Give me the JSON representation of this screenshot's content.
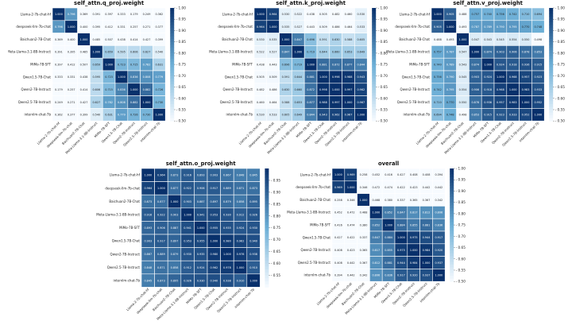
{
  "labels": [
    "Llama-2-7b-chat-hf",
    "deepseek-llm-7b-chat",
    "Baichuan2-7B-Chat",
    "Meta-Llama-3.1-8B-Instruct",
    "MiMo-7B-SFT",
    "Qwen1.5-7B-Chat",
    "Qwen2-7B-Instruct",
    "Qwen2.5-7B-Instruct",
    "internlm-chat-7b"
  ],
  "colormap": {
    "low": "#f7fbff",
    "mid": "#6baed6",
    "high": "#08306b"
  },
  "chart_data": [
    {
      "type": "heatmap",
      "title": "self_attn.q_proj.weight",
      "vmin": 0.5,
      "vmax": 1.0,
      "colorbar_ticks": [
        1.0,
        0.95,
        0.9,
        0.85,
        0.8,
        0.75,
        0.7,
        0.65,
        0.6,
        0.55,
        0.5
      ],
      "values": [
        [
          1.0,
          0.796,
          0.369,
          0.391,
          0.397,
          0.333,
          0.179,
          0.249,
          0.362
        ],
        [
          0.796,
          1.0,
          0.4,
          0.395,
          0.412,
          0.331,
          0.257,
          0.271,
          0.377
        ],
        [
          0.369,
          0.4,
          1.0,
          0.485,
          0.507,
          0.438,
          0.414,
          0.427,
          0.399
        ],
        [
          0.391,
          0.395,
          0.485,
          1.0,
          0.659,
          0.595,
          0.606,
          0.627,
          0.54
        ],
        [
          0.397,
          0.412,
          0.507,
          0.659,
          1.0,
          0.723,
          0.715,
          0.782,
          0.631
        ],
        [
          0.333,
          0.331,
          0.438,
          0.595,
          0.723,
          1.0,
          0.836,
          0.808,
          0.779
        ],
        [
          0.179,
          0.257,
          0.414,
          0.606,
          0.715,
          0.836,
          1.0,
          0.882,
          0.726
        ],
        [
          0.249,
          0.271,
          0.427,
          0.627,
          0.782,
          0.808,
          0.882,
          1.0,
          0.73
        ],
        [
          0.362,
          0.377,
          0.399,
          0.54,
          0.631,
          0.779,
          0.726,
          0.73,
          1.0
        ]
      ]
    },
    {
      "type": "heatmap",
      "title": "self_attn.k_proj.weight",
      "vmin": 0.5,
      "vmax": 1.0,
      "colorbar_ticks": [
        1.0,
        0.95,
        0.9,
        0.85,
        0.8,
        0.75,
        0.7,
        0.65,
        0.6,
        0.55,
        0.5
      ],
      "values": [
        [
          1.0,
          0.964,
          0.53,
          0.522,
          0.438,
          0.505,
          0.482,
          0.46,
          0.53
        ],
        [
          0.964,
          1.0,
          0.535,
          0.527,
          0.443,
          0.509,
          0.486,
          0.464,
          0.533
        ],
        [
          0.53,
          0.535,
          1.0,
          0.847,
          0.696,
          0.591,
          0.63,
          0.588,
          0.605
        ],
        [
          0.522,
          0.527,
          0.847,
          1.0,
          0.719,
          0.644,
          0.66,
          0.653,
          0.649
        ],
        [
          0.438,
          0.443,
          0.696,
          0.719,
          1.0,
          0.881,
          0.872,
          0.877,
          0.844
        ],
        [
          0.505,
          0.509,
          0.591,
          0.644,
          0.881,
          1.0,
          0.998,
          0.988,
          0.943
        ],
        [
          0.482,
          0.486,
          0.63,
          0.66,
          0.872,
          0.998,
          1.0,
          0.997,
          0.962
        ],
        [
          0.46,
          0.464,
          0.588,
          0.653,
          0.877,
          0.988,
          0.997,
          1.0,
          0.967
        ],
        [
          0.53,
          0.533,
          0.605,
          0.649,
          0.844,
          0.943,
          0.962,
          0.967,
          1.0
        ]
      ]
    },
    {
      "type": "heatmap",
      "title": "self_attn.v_proj.weight",
      "vmin": 0.5,
      "vmax": 1.0,
      "colorbar_ticks": [
        1.0,
        0.95,
        0.9,
        0.85,
        0.8,
        0.75,
        0.7,
        0.65,
        0.6,
        0.55,
        0.5
      ],
      "values": [
        [
          1.0,
          0.905,
          0.488,
          0.757,
          0.74,
          0.756,
          0.742,
          0.71,
          0.694
        ],
        [
          0.905,
          1.0,
          0.493,
          0.787,
          0.789,
          0.79,
          0.795,
          0.77,
          0.748
        ],
        [
          0.488,
          0.493,
          1.0,
          0.547,
          0.543,
          0.545,
          0.554,
          0.55,
          0.498
        ],
        [
          0.757,
          0.787,
          0.547,
          1.0,
          0.874,
          0.903,
          0.906,
          0.878,
          0.853
        ],
        [
          0.74,
          0.789,
          0.543,
          0.874,
          1.0,
          0.924,
          0.918,
          0.936,
          0.915
        ],
        [
          0.756,
          0.79,
          0.545,
          0.903,
          0.924,
          1.0,
          0.968,
          0.957,
          0.923
        ],
        [
          0.742,
          0.795,
          0.554,
          0.906,
          0.918,
          0.968,
          1.0,
          0.983,
          0.933
        ],
        [
          0.71,
          0.77,
          0.55,
          0.878,
          0.936,
          0.957,
          0.983,
          1.0,
          0.952
        ],
        [
          0.694,
          0.748,
          0.498,
          0.853,
          0.915,
          0.923,
          0.933,
          0.952,
          1.0
        ]
      ]
    },
    {
      "type": "heatmap",
      "title": "self_attn.o_proj.weight",
      "vmin": 0.5,
      "vmax": 1.0,
      "colorbar_ticks": [
        0.95,
        0.9,
        0.85,
        0.8,
        0.75,
        0.7,
        0.65,
        0.6,
        0.55
      ],
      "values": [
        [
          1.0,
          0.964,
          0.873,
          0.916,
          0.893,
          0.903,
          0.867,
          0.848,
          0.845
        ],
        [
          0.964,
          1.0,
          0.877,
          0.922,
          0.906,
          0.917,
          0.889,
          0.871,
          0.873
        ],
        [
          0.873,
          0.877,
          1.0,
          0.903,
          0.887,
          0.897,
          0.879,
          0.858,
          0.895
        ],
        [
          0.916,
          0.922,
          0.903,
          1.0,
          0.941,
          0.953,
          0.93,
          0.912,
          0.926
        ],
        [
          0.893,
          0.906,
          0.887,
          0.941,
          1.0,
          0.955,
          0.935,
          0.924,
          0.93
        ],
        [
          0.903,
          0.917,
          0.897,
          0.953,
          0.955,
          1.0,
          0.98,
          0.962,
          0.94
        ],
        [
          0.867,
          0.889,
          0.879,
          0.93,
          0.935,
          0.98,
          1.0,
          0.978,
          0.938
        ],
        [
          0.848,
          0.871,
          0.858,
          0.912,
          0.924,
          0.962,
          0.978,
          1.0,
          0.91
        ],
        [
          0.845,
          0.873,
          0.895,
          0.926,
          0.93,
          0.94,
          0.938,
          0.91,
          1.0
        ]
      ]
    },
    {
      "type": "heatmap",
      "title": "overall",
      "vmin": 0.5,
      "vmax": 1.0,
      "colorbar_ticks": [
        1.0,
        0.95,
        0.9,
        0.85,
        0.8,
        0.75,
        0.7,
        0.65,
        0.6,
        0.55,
        0.5
      ],
      "values": [
        [
          1.0,
          0.969,
          0.258,
          0.452,
          0.416,
          0.427,
          0.408,
          0.408,
          0.394
        ],
        [
          0.969,
          1.0,
          0.346,
          0.472,
          0.474,
          0.422,
          0.423,
          0.442,
          0.442
        ],
        [
          0.258,
          0.346,
          1.0,
          0.468,
          0.38,
          0.337,
          0.365,
          0.367,
          0.342
        ],
        [
          0.452,
          0.472,
          0.468,
          1.0,
          0.852,
          0.847,
          0.817,
          0.812,
          0.806
        ],
        [
          0.416,
          0.474,
          0.38,
          0.852,
          1.0,
          0.884,
          0.855,
          0.881,
          0.836
        ],
        [
          0.427,
          0.422,
          0.337,
          0.847,
          0.884,
          1.0,
          0.975,
          0.944,
          0.917
        ],
        [
          0.408,
          0.423,
          0.365,
          0.817,
          0.855,
          0.975,
          1.0,
          0.984,
          0.92
        ],
        [
          0.408,
          0.442,
          0.367,
          0.812,
          0.881,
          0.944,
          0.984,
          1.0,
          0.937
        ],
        [
          0.394,
          0.442,
          0.342,
          0.806,
          0.836,
          0.917,
          0.92,
          0.937,
          1.0
        ]
      ]
    }
  ]
}
